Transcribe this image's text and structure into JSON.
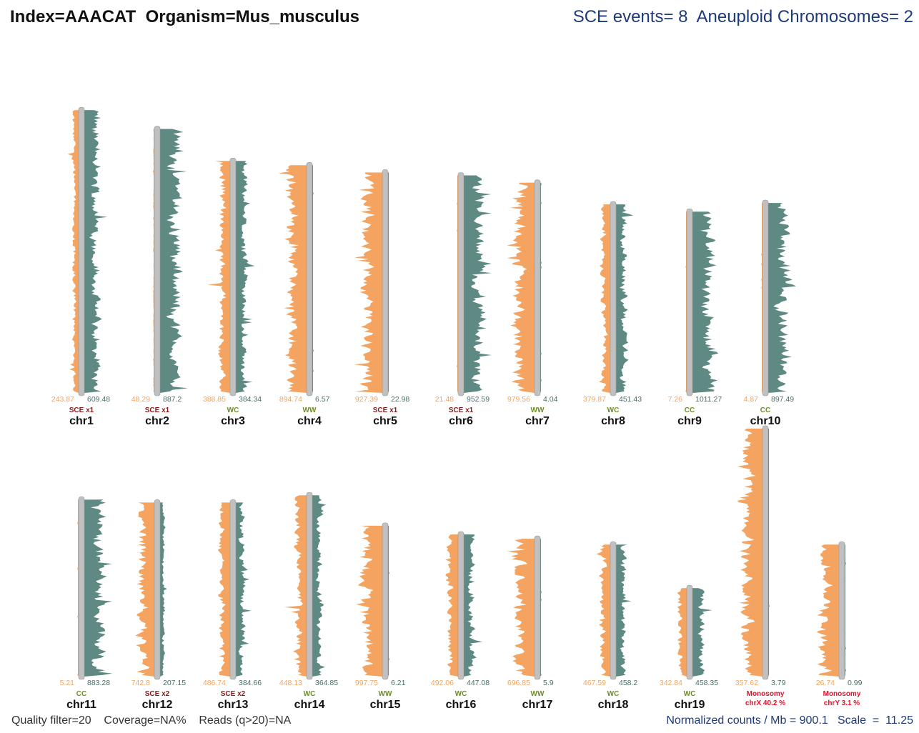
{
  "header": {
    "title": "Index=AAACAT  Organism=Mus_musculus",
    "sce_events": "SCE events= 8  Aneuploid Chromosomes= 2"
  },
  "footer": {
    "left": "Quality filter=20    Coverage=NA%    Reads (q>20)=NA",
    "right": "Normalized counts / Mb = 900.1   Scale  =  11.25"
  },
  "colors": {
    "watson": "#F4A460",
    "crick": "#5F8A83",
    "ideogram": "#C0C0C0",
    "status_sce": "#8B1A1A",
    "status_state": "#6B8E23",
    "status_aneuploid": "#E8102A"
  },
  "chart_data": {
    "type": "bar",
    "title": "Index=AAACAT  Organism=Mus_musculus",
    "description_series": [
      "Watson (W) reads per Mb",
      "Crick (C) reads per Mb"
    ],
    "chromosomes": [
      {
        "name": "chr1",
        "watson": "243.87",
        "crick": "609.48",
        "status": "SCE x1",
        "kind": "sce",
        "row": 1,
        "length_mb": 195
      },
      {
        "name": "chr2",
        "watson": "48.29",
        "crick": "887.2",
        "status": "SCE x1",
        "kind": "sce",
        "row": 1,
        "length_mb": 182
      },
      {
        "name": "chr3",
        "watson": "388.85",
        "crick": "384.34",
        "status": "WC",
        "kind": "state",
        "row": 1,
        "length_mb": 160
      },
      {
        "name": "chr4",
        "watson": "894.74",
        "crick": "6.57",
        "status": "WW",
        "kind": "state",
        "row": 1,
        "length_mb": 157
      },
      {
        "name": "chr5",
        "watson": "927.39",
        "crick": "22.98",
        "status": "SCE x1",
        "kind": "sce",
        "row": 1,
        "length_mb": 152
      },
      {
        "name": "chr6",
        "watson": "21.48",
        "crick": "952.59",
        "status": "SCE x1",
        "kind": "sce",
        "row": 1,
        "length_mb": 150
      },
      {
        "name": "chr7",
        "watson": "979.56",
        "crick": "4.04",
        "status": "WW",
        "kind": "state",
        "row": 1,
        "length_mb": 145
      },
      {
        "name": "chr8",
        "watson": "379.87",
        "crick": "451.43",
        "status": "WC",
        "kind": "state",
        "row": 1,
        "length_mb": 130
      },
      {
        "name": "chr9",
        "watson": "7.26",
        "crick": "1011.27",
        "status": "CC",
        "kind": "state",
        "row": 1,
        "length_mb": 125
      },
      {
        "name": "chr10",
        "watson": "4.87",
        "crick": "897.49",
        "status": "CC",
        "kind": "state",
        "row": 1,
        "length_mb": 131
      },
      {
        "name": "chr11",
        "watson": "5.21",
        "crick": "883.28",
        "status": "CC",
        "kind": "state",
        "row": 2,
        "length_mb": 122
      },
      {
        "name": "chr12",
        "watson": "742.8",
        "crick": "207.15",
        "status": "SCE x2",
        "kind": "sce",
        "row": 2,
        "length_mb": 120
      },
      {
        "name": "chr13",
        "watson": "486.74",
        "crick": "384.66",
        "status": "SCE x2",
        "kind": "sce",
        "row": 2,
        "length_mb": 120
      },
      {
        "name": "chr14",
        "watson": "448.13",
        "crick": "364.85",
        "status": "WC",
        "kind": "state",
        "row": 2,
        "length_mb": 125
      },
      {
        "name": "chr15",
        "watson": "997.75",
        "crick": "6.21",
        "status": "WW",
        "kind": "state",
        "row": 2,
        "length_mb": 104
      },
      {
        "name": "chr16",
        "watson": "492.06",
        "crick": "447.08",
        "status": "WC",
        "kind": "state",
        "row": 2,
        "length_mb": 98
      },
      {
        "name": "chr17",
        "watson": "696.85",
        "crick": "5.9",
        "status": "WW",
        "kind": "state",
        "row": 2,
        "length_mb": 95
      },
      {
        "name": "chr18",
        "watson": "467.59",
        "crick": "458.2",
        "status": "WC",
        "kind": "state",
        "row": 2,
        "length_mb": 91
      },
      {
        "name": "chr19",
        "watson": "342.84",
        "crick": "458.35",
        "status": "WC",
        "kind": "state",
        "row": 2,
        "length_mb": 61
      },
      {
        "name": "chrX",
        "watson": "357.62",
        "crick": "3.79",
        "status": "Monosomy",
        "extra": "chrX 40.2 %",
        "kind": "aneuploid",
        "row": 2,
        "length_mb": 171
      },
      {
        "name": "chrY",
        "watson": "26.74",
        "crick": "0.99",
        "status": "Monosomy",
        "extra": "chrY 3.1 %",
        "kind": "aneuploid",
        "row": 2,
        "length_mb": 91
      }
    ],
    "normalized_counts_per_mb": 900.1,
    "scale": 11.25
  }
}
